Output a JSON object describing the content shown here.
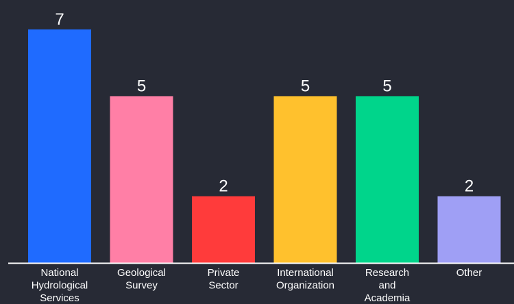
{
  "chart_data": {
    "type": "bar",
    "categories": [
      "National Hydrological Services",
      "Geological Survey",
      "Private Sector",
      "International Organization",
      "Research and Academia",
      "Other"
    ],
    "category_lines": [
      [
        "National",
        "Hydrological",
        "Services"
      ],
      [
        "Geological",
        "Survey"
      ],
      [
        "Private",
        "Sector"
      ],
      [
        "International",
        "Organization"
      ],
      [
        "Research",
        "and",
        "Academia"
      ],
      [
        "Other"
      ]
    ],
    "values": [
      7,
      5,
      2,
      5,
      5,
      2
    ],
    "data_labels": [
      "7",
      "5",
      "2",
      "5",
      "5",
      "2"
    ],
    "colors": [
      "#1f6bff",
      "#ff7fa6",
      "#ff3b3b",
      "#ffc12d",
      "#00d58b",
      "#9f9ff5"
    ],
    "background": "#272a35",
    "axis_color": "#ffffff",
    "text_color": "#ffffff",
    "ylim": [
      0,
      7
    ],
    "grid": false,
    "legend": "none",
    "title": "",
    "xlabel": "",
    "ylabel": ""
  }
}
